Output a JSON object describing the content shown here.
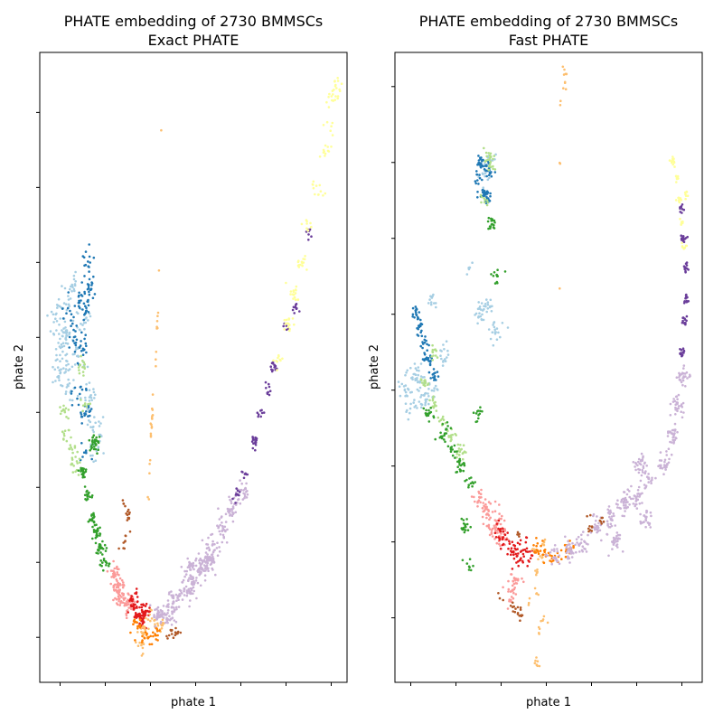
{
  "chart_data": [
    {
      "type": "scatter",
      "title": "PHATE embedding of 2730 BMMSCs",
      "subtitle": "Exact PHATE",
      "xlabel": "phate 1",
      "ylabel": "phate 2",
      "xlim": [
        -0.45,
        6.35
      ],
      "ylim": [
        -0.6,
        7.8
      ],
      "x_ticks": [
        0,
        1,
        2,
        3,
        4,
        5,
        6
      ],
      "y_ticks": [
        0,
        1,
        2,
        3,
        4,
        5,
        6,
        7
      ],
      "grid": false,
      "tick_labels_visible": false,
      "palette": [
        "#a6cee3",
        "#1f78b4",
        "#b2df8a",
        "#33a02c",
        "#fb9a99",
        "#e31a1c",
        "#fdbf6f",
        "#ff7f00",
        "#cab2d6",
        "#6a3d9a",
        "#ffff99",
        "#b15928"
      ],
      "clusters": [
        {
          "color": "#a6cee3",
          "points": [
            [
              -0.1,
              4.3
            ],
            [
              0.0,
              3.9
            ],
            [
              0.05,
              4.1
            ],
            [
              0.1,
              3.6
            ],
            [
              -0.05,
              3.5
            ],
            [
              0.15,
              4.5
            ],
            [
              0.2,
              3.3
            ],
            [
              0.35,
              4.7
            ],
            [
              0.55,
              4.2
            ],
            [
              0.65,
              3.2
            ],
            [
              0.75,
              2.5
            ],
            [
              0.8,
              2.8
            ],
            [
              0.4,
              3.7
            ],
            [
              0.15,
              4.0
            ]
          ],
          "spread": 0.09,
          "count": 220
        },
        {
          "color": "#1f78b4",
          "points": [
            [
              0.2,
              4.3
            ],
            [
              0.35,
              4.0
            ],
            [
              0.5,
              3.8
            ],
            [
              0.45,
              3.3
            ],
            [
              0.55,
              3.0
            ],
            [
              0.6,
              2.5
            ],
            [
              0.45,
              4.5
            ],
            [
              0.6,
              4.4
            ],
            [
              0.55,
              5.0
            ],
            [
              0.65,
              4.7
            ]
          ],
          "spread": 0.08,
          "count": 140
        },
        {
          "color": "#b2df8a",
          "points": [
            [
              0.1,
              3.0
            ],
            [
              0.15,
              2.7
            ],
            [
              0.25,
              2.5
            ],
            [
              0.35,
              2.3
            ],
            [
              0.5,
              3.6
            ],
            [
              0.55,
              3.1
            ]
          ],
          "spread": 0.06,
          "count": 70
        },
        {
          "color": "#33a02c",
          "points": [
            [
              0.5,
              2.2
            ],
            [
              0.6,
              1.9
            ],
            [
              0.7,
              1.6
            ],
            [
              0.8,
              1.4
            ],
            [
              0.9,
              1.2
            ],
            [
              1.0,
              1.0
            ],
            [
              0.75,
              2.6
            ]
          ],
          "spread": 0.05,
          "count": 150
        },
        {
          "color": "#fb9a99",
          "points": [
            [
              1.2,
              0.85
            ],
            [
              1.3,
              0.65
            ],
            [
              1.35,
              0.5
            ],
            [
              1.5,
              0.45
            ]
          ],
          "spread": 0.07,
          "count": 120
        },
        {
          "color": "#e31a1c",
          "points": [
            [
              1.6,
              0.45
            ],
            [
              1.75,
              0.3
            ],
            [
              1.8,
              0.2
            ],
            [
              1.65,
              0.55
            ],
            [
              1.9,
              0.35
            ]
          ],
          "spread": 0.06,
          "count": 90
        },
        {
          "color": "#fdbf6f",
          "points": [
            [
              2.0,
              0.25
            ],
            [
              2.2,
              0.15
            ],
            [
              1.85,
              0.1
            ],
            [
              1.8,
              -0.1
            ]
          ],
          "spread": 0.06,
          "count": 50
        },
        {
          "color": "#ff7f00",
          "points": [
            [
              1.7,
              0.15
            ],
            [
              1.9,
              0.0
            ],
            [
              2.1,
              0.05
            ]
          ],
          "spread": 0.05,
          "count": 40
        },
        {
          "color": "#cab2d6",
          "points": [
            [
              2.2,
              0.3
            ],
            [
              2.5,
              0.5
            ],
            [
              2.8,
              0.6
            ],
            [
              3.1,
              0.9
            ],
            [
              3.4,
              1.2
            ],
            [
              3.6,
              1.45
            ],
            [
              3.8,
              1.7
            ],
            [
              4.0,
              1.9
            ],
            [
              2.9,
              0.9
            ],
            [
              2.4,
              0.3
            ],
            [
              3.3,
              1.0
            ]
          ],
          "spread": 0.08,
          "count": 380
        },
        {
          "color": "#6a3d9a",
          "points": [
            [
              3.9,
              1.9
            ],
            [
              4.1,
              2.2
            ],
            [
              4.3,
              2.6
            ],
            [
              4.45,
              3.0
            ],
            [
              4.6,
              3.3
            ],
            [
              4.75,
              3.6
            ],
            [
              5.0,
              4.1
            ],
            [
              5.2,
              4.4
            ],
            [
              5.5,
              5.4
            ]
          ],
          "spread": 0.04,
          "count": 90
        },
        {
          "color": "#ffff99",
          "points": [
            [
              4.85,
              3.7
            ],
            [
              5.05,
              4.2
            ],
            [
              5.2,
              4.6
            ],
            [
              5.35,
              5.0
            ],
            [
              5.5,
              5.5
            ],
            [
              5.7,
              6.0
            ],
            [
              5.85,
              6.5
            ],
            [
              5.95,
              6.8
            ],
            [
              6.05,
              7.2
            ],
            [
              6.15,
              7.4
            ]
          ],
          "spread": 0.06,
          "count": 120
        },
        {
          "color": "#b15928",
          "points": [
            [
              1.45,
              1.4
            ],
            [
              1.5,
              1.6
            ],
            [
              1.55,
              1.7
            ],
            [
              1.45,
              1.25
            ],
            [
              2.5,
              0.1
            ],
            [
              2.6,
              0.05
            ],
            [
              2.45,
              0.0
            ],
            [
              1.3,
              1.2
            ],
            [
              1.4,
              1.8
            ]
          ],
          "spread": 0.04,
          "count": 40
        },
        {
          "color": "#fdbf6f",
          "line": true,
          "points": [
            [
              2.25,
              6.9
            ],
            [
              2.2,
              5.0
            ],
            [
              2.15,
              4.1
            ],
            [
              2.05,
              3.1
            ],
            [
              2.0,
              2.6
            ],
            [
              1.95,
              1.8
            ]
          ],
          "spread": 0.03,
          "count": 30
        }
      ]
    },
    {
      "type": "scatter",
      "title": "PHATE embedding of 2730 BMMSCs",
      "subtitle": "Fast PHATE",
      "xlabel": "phate 1",
      "ylabel": "phate 2",
      "xlim": [
        -0.35,
        6.45
      ],
      "ylim": [
        -0.85,
        7.45
      ],
      "x_ticks": [
        0,
        1,
        2,
        3,
        4,
        5,
        6
      ],
      "y_ticks": [
        0,
        1,
        2,
        3,
        4,
        5,
        6,
        7
      ],
      "grid": false,
      "tick_labels_visible": false,
      "palette": [
        "#a6cee3",
        "#1f78b4",
        "#b2df8a",
        "#33a02c",
        "#fb9a99",
        "#e31a1c",
        "#fdbf6f",
        "#ff7f00",
        "#cab2d6",
        "#6a3d9a",
        "#ffff99",
        "#b15928"
      ],
      "clusters": [
        {
          "color": "#a6cee3",
          "points": [
            [
              -0.1,
              3.0
            ],
            [
              0.0,
              2.8
            ],
            [
              0.1,
              3.2
            ],
            [
              0.2,
              3.1
            ],
            [
              0.3,
              2.9
            ],
            [
              0.45,
              3.0
            ],
            [
              1.5,
              4.0
            ],
            [
              1.7,
              4.1
            ],
            [
              1.9,
              3.8
            ],
            [
              1.3,
              4.6
            ],
            [
              1.75,
              6.0
            ],
            [
              1.65,
              5.8
            ],
            [
              0.7,
              3.5
            ],
            [
              0.5,
              4.2
            ]
          ],
          "spread": 0.07,
          "count": 200
        },
        {
          "color": "#1f78b4",
          "points": [
            [
              0.1,
              4.0
            ],
            [
              0.2,
              3.8
            ],
            [
              0.3,
              3.6
            ],
            [
              0.4,
              3.4
            ],
            [
              0.5,
              3.2
            ],
            [
              1.5,
              5.8
            ],
            [
              1.6,
              5.6
            ],
            [
              1.7,
              5.5
            ],
            [
              1.55,
              6.0
            ],
            [
              1.7,
              5.9
            ]
          ],
          "spread": 0.05,
          "count": 160
        },
        {
          "color": "#b2df8a",
          "points": [
            [
              0.3,
              3.1
            ],
            [
              0.5,
              2.8
            ],
            [
              0.7,
              2.6
            ],
            [
              0.9,
              2.4
            ],
            [
              1.1,
              2.2
            ],
            [
              1.7,
              6.1
            ],
            [
              1.8,
              6.0
            ],
            [
              1.65,
              5.5
            ],
            [
              0.5,
              3.5
            ]
          ],
          "spread": 0.05,
          "count": 110
        },
        {
          "color": "#33a02c",
          "points": [
            [
              0.4,
              2.7
            ],
            [
              0.7,
              2.4
            ],
            [
              0.9,
              2.2
            ],
            [
              1.1,
              2.0
            ],
            [
              1.3,
              1.8
            ],
            [
              1.5,
              2.7
            ],
            [
              1.8,
              5.2
            ],
            [
              1.9,
              4.5
            ],
            [
              1.3,
              0.7
            ],
            [
              1.2,
              1.2
            ],
            [
              0.8,
              2.5
            ]
          ],
          "spread": 0.05,
          "count": 150
        },
        {
          "color": "#fb9a99",
          "points": [
            [
              1.5,
              1.6
            ],
            [
              1.7,
              1.4
            ],
            [
              1.8,
              1.2
            ],
            [
              1.9,
              1.3
            ],
            [
              2.0,
              1.1
            ],
            [
              2.3,
              0.5
            ],
            [
              2.2,
              0.3
            ]
          ],
          "spread": 0.07,
          "count": 140
        },
        {
          "color": "#e31a1c",
          "points": [
            [
              2.0,
              1.1
            ],
            [
              2.2,
              1.0
            ],
            [
              2.4,
              0.9
            ],
            [
              2.6,
              0.85
            ],
            [
              2.3,
              0.8
            ]
          ],
          "spread": 0.08,
          "count": 80
        },
        {
          "color": "#fdbf6f",
          "points": [
            [
              2.7,
              0.9
            ],
            [
              2.9,
              0.8
            ],
            [
              2.8,
              0.6
            ],
            [
              2.6,
              0.2
            ],
            [
              2.8,
              0.3
            ],
            [
              2.95,
              1.0
            ],
            [
              3.4,
              7.2
            ],
            [
              3.4,
              7.0
            ],
            [
              3.35,
              6.8
            ],
            [
              3.3,
              6.0
            ],
            [
              3.3,
              4.4
            ],
            [
              3.25,
              4.2
            ],
            [
              2.85,
              -0.2
            ],
            [
              2.8,
              -0.6
            ],
            [
              2.95,
              0.0
            ]
          ],
          "spread": 0.03,
          "count": 60
        },
        {
          "color": "#ff7f00",
          "points": [
            [
              2.8,
              0.9
            ],
            [
              3.0,
              0.85
            ],
            [
              3.2,
              0.8
            ],
            [
              3.5,
              0.9
            ]
          ],
          "spread": 0.06,
          "count": 50
        },
        {
          "color": "#cab2d6",
          "points": [
            [
              3.2,
              0.8
            ],
            [
              3.5,
              0.9
            ],
            [
              3.8,
              1.0
            ],
            [
              4.1,
              1.2
            ],
            [
              4.4,
              1.3
            ],
            [
              4.7,
              1.5
            ],
            [
              5.0,
              1.6
            ],
            [
              5.3,
              1.8
            ],
            [
              5.6,
              2.0
            ],
            [
              5.8,
              2.4
            ],
            [
              5.9,
              2.8
            ],
            [
              6.0,
              3.2
            ],
            [
              4.5,
              1.0
            ],
            [
              5.2,
              1.3
            ],
            [
              5.1,
              2.0
            ]
          ],
          "spread": 0.07,
          "count": 400
        },
        {
          "color": "#6a3d9a",
          "points": [
            [
              6.0,
              3.5
            ],
            [
              6.05,
              3.9
            ],
            [
              6.1,
              4.2
            ],
            [
              6.1,
              4.6
            ],
            [
              6.05,
              5.0
            ],
            [
              6.0,
              5.4
            ]
          ],
          "spread": 0.03,
          "count": 80
        },
        {
          "color": "#ffff99",
          "points": [
            [
              5.8,
              6.0
            ],
            [
              5.9,
              5.8
            ],
            [
              5.95,
              5.5
            ],
            [
              6.0,
              5.2
            ],
            [
              6.05,
              4.9
            ],
            [
              6.1,
              5.6
            ]
          ],
          "spread": 0.03,
          "count": 60
        },
        {
          "color": "#b15928",
          "points": [
            [
              2.0,
              0.3
            ],
            [
              2.3,
              0.15
            ],
            [
              2.4,
              0.05
            ],
            [
              3.9,
              1.4
            ],
            [
              4.0,
              1.2
            ],
            [
              4.2,
              1.3
            ],
            [
              2.4,
              1.1
            ]
          ],
          "spread": 0.04,
          "count": 40
        }
      ]
    }
  ]
}
